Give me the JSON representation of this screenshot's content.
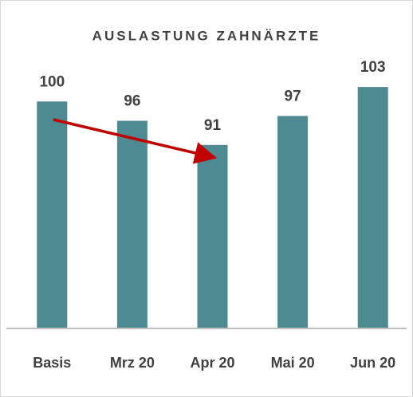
{
  "chart_data": {
    "type": "bar",
    "title": "AUSLASTUNG ZAHNÄRZTE",
    "categories": [
      "Basis",
      "Mrz 20",
      "Apr 20",
      "Mai 20",
      "Jun 20"
    ],
    "values": [
      100,
      96,
      91,
      97,
      103
    ],
    "color": "#4e8a92",
    "ylim": [
      53,
      105
    ]
  }
}
